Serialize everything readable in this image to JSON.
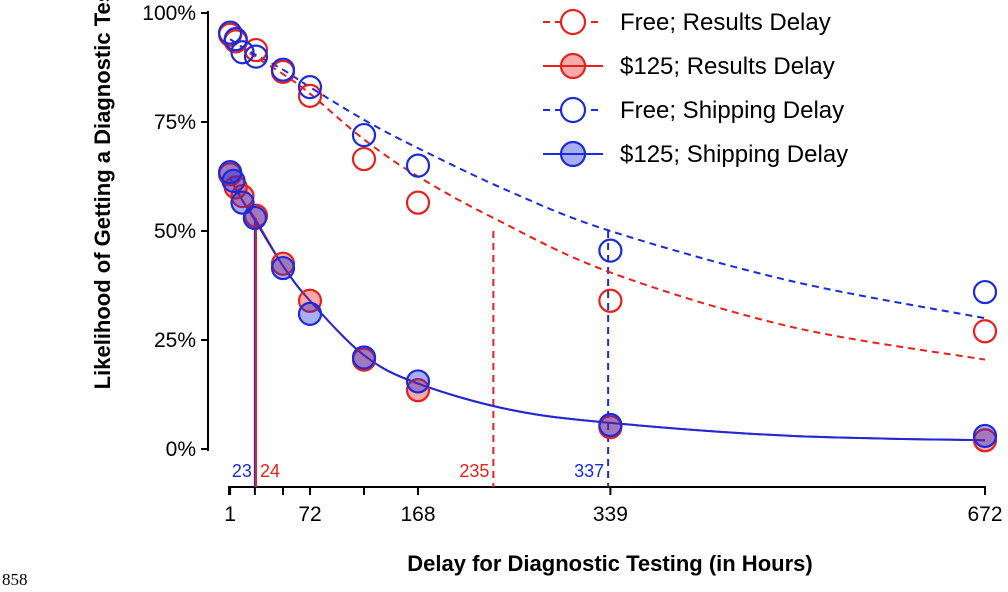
{
  "page_number": "858",
  "chart_data": {
    "type": "scatter",
    "xlabel": "Delay for Diagnostic Testing (in Hours)",
    "ylabel": "Likelihood of Getting a Diagnostic Test",
    "xlim": [
      0,
      672
    ],
    "ylim": [
      0,
      100
    ],
    "x_ticks": [
      0,
      1,
      23,
      48,
      72,
      120,
      168,
      339,
      672
    ],
    "x_tick_labels": [
      "1",
      "72",
      "168",
      "339",
      "672"
    ],
    "x_tick_label_values": [
      1,
      72,
      168,
      339,
      672
    ],
    "y_ticks": [
      0,
      25,
      50,
      75,
      100
    ],
    "y_tick_labels": [
      "0%",
      "25%",
      "50%",
      "75%",
      "100%"
    ],
    "grid": false,
    "legend_position": "top-right",
    "series": [
      {
        "name": "Free; Results Delay",
        "color": "#e8201c",
        "filled": false,
        "dashed": true,
        "x": [
          1,
          6,
          24,
          48,
          72,
          120,
          168,
          339,
          672
        ],
        "y": [
          95,
          93.5,
          91.5,
          86.5,
          81,
          66.5,
          56.5,
          34,
          27
        ],
        "fit": [
          [
            1,
            94
          ],
          [
            23,
            90
          ],
          [
            48,
            86
          ],
          [
            72,
            81.5
          ],
          [
            120,
            71
          ],
          [
            168,
            62.5
          ],
          [
            235,
            53
          ],
          [
            339,
            40.5
          ],
          [
            500,
            28
          ],
          [
            672,
            20.5
          ]
        ]
      },
      {
        "name": "$125; Results Delay",
        "color": "#e8201c",
        "filled": true,
        "dashed": false,
        "x": [
          1,
          6,
          12,
          24,
          48,
          72,
          120,
          168,
          339,
          672
        ],
        "y": [
          63,
          60,
          58,
          53.5,
          42.5,
          34,
          20.5,
          13.5,
          5,
          2
        ],
        "fit": [
          [
            1,
            62
          ],
          [
            12,
            57
          ],
          [
            24,
            52.5
          ],
          [
            48,
            42
          ],
          [
            72,
            34
          ],
          [
            120,
            21.5
          ],
          [
            168,
            15
          ],
          [
            250,
            9
          ],
          [
            339,
            6
          ],
          [
            500,
            3
          ],
          [
            672,
            2
          ]
        ]
      },
      {
        "name": "Free; Shipping Delay",
        "color": "#1a2bde",
        "filled": false,
        "dashed": true,
        "x": [
          1,
          6,
          12,
          24,
          48,
          72,
          120,
          168,
          339,
          672
        ],
        "y": [
          95.5,
          94,
          91,
          90,
          87,
          83,
          72,
          65,
          45.5,
          36
        ],
        "fit": [
          [
            1,
            94
          ],
          [
            23,
            90.5
          ],
          [
            48,
            87
          ],
          [
            72,
            83
          ],
          [
            120,
            75.5
          ],
          [
            168,
            69
          ],
          [
            250,
            59
          ],
          [
            339,
            50
          ],
          [
            500,
            38.5
          ],
          [
            672,
            30
          ]
        ]
      },
      {
        "name": "$125; Shipping Delay",
        "color": "#1a2bde",
        "filled": true,
        "dashed": false,
        "x": [
          1,
          4,
          12,
          23,
          48,
          72,
          120,
          168,
          339,
          672
        ],
        "y": [
          63.5,
          61.5,
          56.5,
          53,
          41.5,
          31,
          21,
          15.5,
          5.5,
          3
        ],
        "fit": [
          [
            1,
            62
          ],
          [
            12,
            57
          ],
          [
            23,
            52.5
          ],
          [
            48,
            42
          ],
          [
            72,
            34
          ],
          [
            120,
            21.5
          ],
          [
            168,
            15
          ],
          [
            250,
            9
          ],
          [
            339,
            6
          ],
          [
            500,
            3
          ],
          [
            672,
            2
          ]
        ]
      }
    ],
    "annotations": [
      {
        "label": "23",
        "x": 23,
        "color": "#1a2bde",
        "style": "solid",
        "y_top": 53
      },
      {
        "label": "24",
        "x": 24,
        "color": "#e8201c",
        "style": "solid",
        "y_top": 53
      },
      {
        "label": "235",
        "x": 235,
        "color": "#e8201c",
        "style": "dashed",
        "y_top": 50
      },
      {
        "label": "337",
        "x": 337,
        "color": "#1a2bde",
        "style": "dashed",
        "y_top": 50
      }
    ]
  }
}
